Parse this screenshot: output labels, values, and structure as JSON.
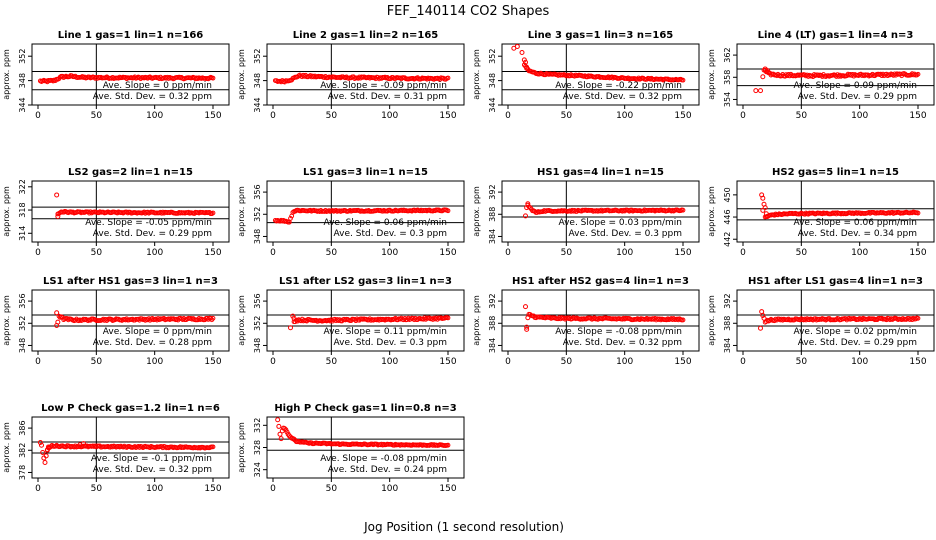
{
  "title": "FEF_140114  CO2 Shapes",
  "xlabel": "Jog Position (1 second resolution)",
  "ylabel": "approx. ppm",
  "colors": {
    "points": "#ff0000",
    "axis": "#000000",
    "background": "#ffffff"
  },
  "chart_data": [
    {
      "type": "scatter",
      "title": "Line 1 gas=1 lin=1 n=166",
      "xlim": [
        0,
        150
      ],
      "xticks": [
        0,
        50,
        100,
        150
      ],
      "ylim": [
        344,
        354
      ],
      "yticks": [
        344,
        348,
        352
      ],
      "hlines": [
        349.5,
        346.5
      ],
      "vline": 50,
      "slope_text": "Ave. Slope = 0 ppm/min",
      "std_text": "Ave. Std. Dev. = 0.32 ppm",
      "shape": {
        "start": 2,
        "end": 150,
        "base": 348.3,
        "early": [
          [
            2,
            347.9
          ],
          [
            8,
            347.9
          ],
          [
            14,
            348.0
          ],
          [
            20,
            348.6
          ],
          [
            28,
            348.7
          ],
          [
            40,
            348.5
          ],
          [
            150,
            348.4
          ]
        ],
        "noise": 0.15
      }
    },
    {
      "type": "scatter",
      "title": "Line 2 gas=1 lin=2 n=165",
      "xlim": [
        0,
        150
      ],
      "xticks": [
        0,
        50,
        100,
        150
      ],
      "ylim": [
        344,
        354
      ],
      "yticks": [
        344,
        348,
        352
      ],
      "hlines": [
        349.5,
        346.5
      ],
      "vline": 50,
      "slope_text": "Ave. Slope = -0.09 ppm/min",
      "std_text": "Ave. Std. Dev. = 0.31 ppm",
      "shape": {
        "start": 2,
        "end": 150,
        "base": 348.3,
        "early": [
          [
            2,
            347.9
          ],
          [
            10,
            347.9
          ],
          [
            16,
            348.2
          ],
          [
            22,
            348.8
          ],
          [
            30,
            348.7
          ],
          [
            60,
            348.5
          ],
          [
            150,
            348.3
          ]
        ],
        "noise": 0.15
      }
    },
    {
      "type": "scatter",
      "title": "Line 3 gas=1 lin=3 n=165",
      "xlim": [
        0,
        150
      ],
      "xticks": [
        0,
        50,
        100,
        150
      ],
      "ylim": [
        344,
        354
      ],
      "yticks": [
        344,
        348,
        352
      ],
      "hlines": [
        349.5,
        346.5
      ],
      "vline": 50,
      "slope_text": "Ave. Slope = -0.22 ppm/min",
      "std_text": "Ave. Std. Dev. = 0.32 ppm",
      "shape": {
        "start": 14,
        "end": 150,
        "base": 348.0,
        "early": [
          [
            14,
            350.6
          ],
          [
            18,
            349.6
          ],
          [
            24,
            349.2
          ],
          [
            35,
            349.0
          ],
          [
            60,
            348.8
          ],
          [
            100,
            348.4
          ],
          [
            150,
            348.1
          ]
        ],
        "noise": 0.12
      },
      "extra": [
        [
          5,
          353.3
        ],
        [
          8,
          353.6
        ],
        [
          12,
          352.6
        ],
        [
          14,
          351.4
        ],
        [
          15,
          351.0
        ],
        [
          16,
          350.0
        ]
      ]
    },
    {
      "type": "scatter",
      "title": "Line 4 (LT) gas=1 lin=4 n=3",
      "xlim": [
        0,
        150
      ],
      "xticks": [
        0,
        50,
        100,
        150
      ],
      "ylim": [
        353,
        364
      ],
      "yticks": [
        354,
        358,
        362
      ],
      "hlines": [
        359.5,
        356.5
      ],
      "vline": 50,
      "slope_text": "Ave. Slope = 0.09 ppm/min",
      "std_text": "Ave. Std. Dev. = 0.29 ppm",
      "shape": {
        "start": 18,
        "end": 150,
        "base": 358.5,
        "early": [
          [
            18,
            359.3
          ],
          [
            22,
            358.6
          ],
          [
            30,
            358.4
          ],
          [
            60,
            358.3
          ],
          [
            150,
            358.5
          ]
        ],
        "noise": 0.2
      },
      "extra": [
        [
          11,
          355.6
        ],
        [
          15,
          355.6
        ],
        [
          17,
          358.1
        ],
        [
          19,
          359.5
        ],
        [
          21,
          359.2
        ]
      ]
    },
    {
      "type": "scatter",
      "title": "LS2 gas=2 lin=1 n=15",
      "xlim": [
        0,
        150
      ],
      "xticks": [
        0,
        50,
        100,
        150
      ],
      "ylim": [
        312.5,
        323
      ],
      "yticks": [
        314,
        318,
        322
      ],
      "hlines": [
        318.5,
        316.5
      ],
      "vline": 50,
      "slope_text": "Ave. Slope = -0.05 ppm/min",
      "std_text": "Ave. Std. Dev. = 0.29 ppm",
      "shape": {
        "start": 17,
        "end": 150,
        "base": 317.6,
        "early": [
          [
            17,
            317.3
          ],
          [
            20,
            317.7
          ],
          [
            30,
            317.6
          ],
          [
            150,
            317.5
          ]
        ],
        "noise": 0.12
      },
      "extra": [
        [
          16,
          320.6
        ],
        [
          17,
          316.9
        ]
      ]
    },
    {
      "type": "scatter",
      "title": "LS1 gas=3 lin=1 n=15",
      "xlim": [
        0,
        150
      ],
      "xticks": [
        0,
        50,
        100,
        150
      ],
      "ylim": [
        347,
        358
      ],
      "yticks": [
        348,
        352,
        356
      ],
      "hlines": [
        353.5,
        350.5
      ],
      "vline": 50,
      "slope_text": "Ave. Slope = 0.06 ppm/min",
      "std_text": "Ave. Std. Dev. = 0.3 ppm",
      "shape": {
        "start": 2,
        "end": 150,
        "base": 352.6,
        "early": [
          [
            2,
            350.9
          ],
          [
            10,
            350.8
          ],
          [
            14,
            350.6
          ],
          [
            17,
            352.4
          ],
          [
            20,
            352.7
          ],
          [
            40,
            352.6
          ],
          [
            150,
            352.7
          ]
        ],
        "noise": 0.12
      }
    },
    {
      "type": "scatter",
      "title": "HS1 gas=4 lin=1 n=15",
      "xlim": [
        0,
        150
      ],
      "xticks": [
        0,
        50,
        100,
        150
      ],
      "ylim": [
        383,
        394
      ],
      "yticks": [
        384,
        388,
        392
      ],
      "hlines": [
        389.5,
        387.5
      ],
      "vline": 50,
      "slope_text": "Ave. Slope = 0.03 ppm/min",
      "std_text": "Ave. Std. Dev. = 0.3 ppm",
      "shape": {
        "start": 17,
        "end": 150,
        "base": 388.7,
        "early": [
          [
            17,
            389.6
          ],
          [
            20,
            388.9
          ],
          [
            24,
            388.3
          ],
          [
            30,
            388.6
          ],
          [
            150,
            388.7
          ]
        ],
        "noise": 0.12
      },
      "extra": [
        [
          15,
          387.7
        ],
        [
          16,
          389.2
        ],
        [
          17,
          389.9
        ]
      ]
    },
    {
      "type": "scatter",
      "title": "HS2 gas=5 lin=1 n=15",
      "xlim": [
        0,
        150
      ],
      "xticks": [
        0,
        50,
        100,
        150
      ],
      "ylim": [
        441.5,
        452.5
      ],
      "yticks": [
        442,
        446,
        450
      ],
      "hlines": [
        447.5,
        445.5
      ],
      "vline": 50,
      "slope_text": "Ave. Slope = 0.06 ppm/min",
      "std_text": "Ave. Std. Dev. = 0.34 ppm",
      "shape": {
        "start": 19,
        "end": 150,
        "base": 446.7,
        "early": [
          [
            19,
            446.0
          ],
          [
            25,
            446.4
          ],
          [
            40,
            446.6
          ],
          [
            150,
            446.8
          ]
        ],
        "noise": 0.12
      },
      "extra": [
        [
          16,
          450.0
        ],
        [
          17,
          449.4
        ],
        [
          18,
          448.3
        ],
        [
          19,
          447.7
        ],
        [
          20,
          446.6
        ],
        [
          21,
          446.1
        ],
        [
          17,
          447.2
        ]
      ]
    },
    {
      "type": "scatter",
      "title": "LS1 after HS1 gas=3 lin=1 n=3",
      "xlim": [
        0,
        150
      ],
      "xticks": [
        0,
        50,
        100,
        150
      ],
      "ylim": [
        347,
        358
      ],
      "yticks": [
        348,
        352,
        356
      ],
      "hlines": [
        353.5,
        351.5
      ],
      "vline": 50,
      "slope_text": "Ave. Slope = 0 ppm/min",
      "std_text": "Ave. Std. Dev. = 0.28 ppm",
      "shape": {
        "start": 18,
        "end": 150,
        "base": 352.7,
        "early": [
          [
            18,
            353.3
          ],
          [
            22,
            352.8
          ],
          [
            30,
            352.6
          ],
          [
            150,
            352.8
          ]
        ],
        "noise": 0.17
      },
      "extra": [
        [
          16,
          353.9
        ],
        [
          16,
          351.6
        ],
        [
          17,
          352.2
        ]
      ]
    },
    {
      "type": "scatter",
      "title": "LS1 after LS2 gas=3 lin=1 n=3",
      "xlim": [
        0,
        150
      ],
      "xticks": [
        0,
        50,
        100,
        150
      ],
      "ylim": [
        347,
        358
      ],
      "yticks": [
        348,
        352,
        356
      ],
      "hlines": [
        353.5,
        351.5
      ],
      "vline": 50,
      "slope_text": "Ave. Slope = 0.11 ppm/min",
      "std_text": "Ave. Std. Dev. = 0.3 ppm",
      "shape": {
        "start": 18,
        "end": 150,
        "base": 352.7,
        "early": [
          [
            18,
            352.4
          ],
          [
            22,
            352.6
          ],
          [
            40,
            352.5
          ],
          [
            150,
            352.9
          ]
        ],
        "noise": 0.17
      },
      "extra": [
        [
          15,
          351.2
        ],
        [
          17,
          353.3
        ],
        [
          18,
          352.9
        ]
      ]
    },
    {
      "type": "scatter",
      "title": "HS1 after HS2 gas=4 lin=1 n=3",
      "xlim": [
        0,
        150
      ],
      "xticks": [
        0,
        50,
        100,
        150
      ],
      "ylim": [
        383,
        394
      ],
      "yticks": [
        384,
        388,
        392
      ],
      "hlines": [
        389.5,
        387.5
      ],
      "vline": 50,
      "slope_text": "Ave. Slope = -0.08 ppm/min",
      "std_text": "Ave. Std. Dev. = 0.32 ppm",
      "shape": {
        "start": 19,
        "end": 150,
        "base": 388.9,
        "early": [
          [
            19,
            389.5
          ],
          [
            24,
            389.1
          ],
          [
            40,
            388.9
          ],
          [
            150,
            388.7
          ]
        ],
        "noise": 0.15
      },
      "extra": [
        [
          15,
          391.0
        ],
        [
          16,
          386.9
        ],
        [
          16,
          387.3
        ],
        [
          17,
          389.0
        ],
        [
          18,
          389.6
        ]
      ]
    },
    {
      "type": "scatter",
      "title": "HS1 after LS1 gas=4 lin=1 n=3",
      "xlim": [
        0,
        150
      ],
      "xticks": [
        0,
        50,
        100,
        150
      ],
      "ylim": [
        383,
        394
      ],
      "yticks": [
        384,
        388,
        392
      ],
      "hlines": [
        389.5,
        387.5
      ],
      "vline": 50,
      "slope_text": "Ave. Slope = 0.02 ppm/min",
      "std_text": "Ave. Std. Dev. = 0.29 ppm",
      "shape": {
        "start": 19,
        "end": 150,
        "base": 388.7,
        "early": [
          [
            19,
            388.3
          ],
          [
            24,
            388.6
          ],
          [
            40,
            388.7
          ],
          [
            150,
            388.8
          ]
        ],
        "noise": 0.15
      },
      "extra": [
        [
          15,
          387.1
        ],
        [
          16,
          390.1
        ],
        [
          17,
          389.4
        ],
        [
          18,
          388.9
        ]
      ]
    },
    {
      "type": "scatter",
      "title": "Low P Check gas=1.2 lin=1 n=6",
      "xlim": [
        0,
        150
      ],
      "xticks": [
        0,
        50,
        100,
        150
      ],
      "ylim": [
        377,
        388
      ],
      "yticks": [
        378,
        382,
        386
      ],
      "hlines": [
        383.5,
        381.5
      ],
      "vline": 50,
      "slope_text": "Ave. Slope = -0.1 ppm/min",
      "std_text": "Ave. Std. Dev. = 0.32 ppm",
      "shape": {
        "start": 8,
        "end": 150,
        "base": 382.6,
        "early": [
          [
            8,
            382.2
          ],
          [
            12,
            382.8
          ],
          [
            30,
            382.7
          ],
          [
            150,
            382.5
          ]
        ],
        "noise": 0.13
      },
      "extra": [
        [
          2,
          383.4
        ],
        [
          3,
          382.9
        ],
        [
          4,
          381.6
        ],
        [
          5,
          380.6
        ],
        [
          6,
          379.8
        ],
        [
          7,
          381.0
        ],
        [
          8,
          382.0
        ],
        [
          9,
          382.6
        ],
        [
          36,
          383.0
        ],
        [
          39,
          383.2
        ]
      ]
    },
    {
      "type": "scatter",
      "title": "High P Check gas=1 lin=0.8 n=3",
      "xlim": [
        0,
        150
      ],
      "xticks": [
        0,
        50,
        100,
        150
      ],
      "ylim": [
        322.5,
        333.5
      ],
      "yticks": [
        324,
        328,
        332
      ],
      "hlines": [
        329.5,
        327.5
      ],
      "vline": 50,
      "slope_text": "Ave. Slope = -0.08 ppm/min",
      "std_text": "Ave. Std. Dev. = 0.24 ppm",
      "shape": {
        "start": 20,
        "end": 150,
        "base": 328.6,
        "early": [
          [
            20,
            329.1
          ],
          [
            30,
            328.8
          ],
          [
            60,
            328.6
          ],
          [
            150,
            328.4
          ]
        ],
        "noise": 0.1
      },
      "extra": [
        [
          4,
          333.0
        ],
        [
          5,
          331.8
        ],
        [
          6,
          330.4
        ],
        [
          7,
          329.6
        ],
        [
          8,
          331.0
        ],
        [
          9,
          331.5
        ],
        [
          10,
          331.4
        ],
        [
          11,
          331.2
        ],
        [
          12,
          330.8
        ],
        [
          13,
          330.4
        ],
        [
          14,
          330.1
        ],
        [
          15,
          329.9
        ],
        [
          16,
          329.7
        ],
        [
          17,
          329.6
        ],
        [
          18,
          329.5
        ],
        [
          19,
          329.3
        ]
      ]
    }
  ]
}
